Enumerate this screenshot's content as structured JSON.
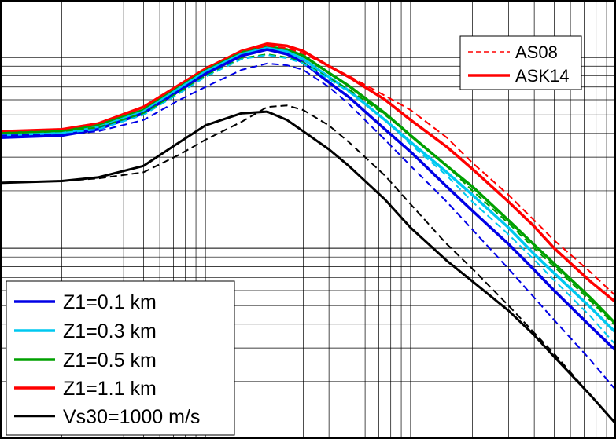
{
  "chart_data": {
    "type": "line",
    "title": "",
    "xlabel": "",
    "ylabel": "",
    "x_scale": "log",
    "y_scale": "log",
    "xlim": [
      0.01,
      10
    ],
    "ylim": [
      0.01,
      2
    ],
    "grid": true,
    "colors": {
      "z1_0_1": "#0000e6",
      "z1_0_3": "#00c8f0",
      "z1_0_5": "#00a000",
      "z1_1_1": "#ff0000",
      "vs30_1000": "#000000"
    },
    "legend_model": {
      "placement": "top-right",
      "entries": [
        {
          "label": "AS08",
          "style": "dashed",
          "color": "#ff0000"
        },
        {
          "label": "ASK14",
          "style": "solid",
          "color": "#ff0000"
        }
      ]
    },
    "legend_site": {
      "placement": "bottom-left",
      "entries": [
        {
          "label": "Z1=0.1 km",
          "color": "#0000e6"
        },
        {
          "label": "Z1=0.3 km",
          "color": "#00c8f0"
        },
        {
          "label": "Z1=0.5 km",
          "color": "#00a000"
        },
        {
          "label": "Z1=1.1 km",
          "color": "#ff0000"
        },
        {
          "label": "Vs30=1000 m/s",
          "color": "#000000"
        }
      ]
    },
    "series": [
      {
        "name": "Z1=1.1 km",
        "model": "ASK14",
        "color": "#ff0000",
        "style": "solid",
        "x": [
          0.01,
          0.02,
          0.03,
          0.05,
          0.075,
          0.1,
          0.15,
          0.2,
          0.25,
          0.3,
          0.4,
          0.5,
          0.75,
          1,
          1.5,
          2,
          3,
          4,
          5,
          7.5,
          10
        ],
        "y": [
          0.41,
          0.42,
          0.45,
          0.55,
          0.72,
          0.87,
          1.08,
          1.18,
          1.15,
          1.08,
          0.9,
          0.79,
          0.6,
          0.47,
          0.34,
          0.26,
          0.175,
          0.13,
          0.1,
          0.067,
          0.052
        ]
      },
      {
        "name": "Z1=0.5 km",
        "model": "ASK14",
        "color": "#00a000",
        "style": "solid",
        "x": [
          0.01,
          0.02,
          0.03,
          0.05,
          0.075,
          0.1,
          0.15,
          0.2,
          0.25,
          0.3,
          0.4,
          0.5,
          0.75,
          1,
          1.5,
          2,
          3,
          4,
          5,
          7.5,
          10
        ],
        "y": [
          0.4,
          0.41,
          0.44,
          0.53,
          0.7,
          0.85,
          1.06,
          1.14,
          1.1,
          1.02,
          0.83,
          0.71,
          0.51,
          0.39,
          0.27,
          0.21,
          0.14,
          0.104,
          0.083,
          0.055,
          0.04
        ]
      },
      {
        "name": "Z1=0.3 km",
        "model": "ASK14",
        "color": "#00c8f0",
        "style": "solid",
        "x": [
          0.01,
          0.02,
          0.03,
          0.05,
          0.075,
          0.1,
          0.15,
          0.2,
          0.25,
          0.3,
          0.4,
          0.5,
          0.75,
          1,
          1.5,
          2,
          3,
          4,
          5,
          7.5,
          10
        ],
        "y": [
          0.39,
          0.4,
          0.43,
          0.52,
          0.69,
          0.84,
          1.04,
          1.12,
          1.07,
          0.98,
          0.79,
          0.67,
          0.47,
          0.36,
          0.25,
          0.19,
          0.128,
          0.093,
          0.074,
          0.049,
          0.036
        ]
      },
      {
        "name": "Z1=0.1 km",
        "model": "ASK14",
        "color": "#0000e6",
        "style": "solid",
        "x": [
          0.01,
          0.02,
          0.03,
          0.05,
          0.075,
          0.1,
          0.15,
          0.2,
          0.25,
          0.3,
          0.4,
          0.5,
          0.75,
          1,
          1.5,
          2,
          3,
          4,
          5,
          7.5,
          10
        ],
        "y": [
          0.38,
          0.39,
          0.42,
          0.51,
          0.67,
          0.82,
          1.02,
          1.1,
          1.04,
          0.94,
          0.74,
          0.62,
          0.42,
          0.32,
          0.21,
          0.157,
          0.105,
          0.077,
          0.06,
          0.039,
          0.029
        ]
      },
      {
        "name": "Vs30=1000 m/s",
        "model": "ASK14",
        "color": "#000000",
        "style": "solid",
        "x": [
          0.01,
          0.02,
          0.03,
          0.05,
          0.075,
          0.1,
          0.15,
          0.2,
          0.25,
          0.3,
          0.4,
          0.5,
          0.75,
          1,
          1.5,
          2,
          3,
          4,
          5,
          7.5,
          10
        ],
        "y": [
          0.22,
          0.225,
          0.235,
          0.27,
          0.36,
          0.44,
          0.51,
          0.52,
          0.47,
          0.41,
          0.33,
          0.27,
          0.18,
          0.128,
          0.086,
          0.067,
          0.047,
          0.035,
          0.027,
          0.017,
          0.012
        ]
      },
      {
        "name": "Z1=1.1 km",
        "model": "AS08",
        "color": "#ff0000",
        "style": "dashed",
        "x": [
          0.01,
          0.02,
          0.03,
          0.05,
          0.075,
          0.1,
          0.15,
          0.2,
          0.25,
          0.3,
          0.4,
          0.5,
          0.75,
          1,
          1.5,
          2,
          3,
          4,
          5,
          7.5,
          10
        ],
        "y": [
          0.41,
          0.42,
          0.45,
          0.55,
          0.72,
          0.88,
          1.08,
          1.15,
          1.12,
          1.05,
          0.9,
          0.8,
          0.63,
          0.53,
          0.38,
          0.28,
          0.19,
          0.14,
          0.11,
          0.075,
          0.056
        ]
      },
      {
        "name": "Z1=0.5 km",
        "model": "AS08",
        "color": "#00a000",
        "style": "dashed",
        "x": [
          0.01,
          0.02,
          0.03,
          0.05,
          0.075,
          0.1,
          0.15,
          0.2,
          0.25,
          0.3,
          0.4,
          0.5,
          0.75,
          1,
          1.5,
          2,
          3,
          4,
          5,
          7.5,
          10
        ],
        "y": [
          0.4,
          0.41,
          0.43,
          0.51,
          0.66,
          0.8,
          0.99,
          1.04,
          1.0,
          0.94,
          0.78,
          0.68,
          0.5,
          0.39,
          0.27,
          0.2,
          0.135,
          0.1,
          0.08,
          0.053,
          0.039
        ]
      },
      {
        "name": "Z1=0.3 km",
        "model": "AS08",
        "color": "#00c8f0",
        "style": "dashed",
        "x": [
          0.01,
          0.02,
          0.03,
          0.05,
          0.075,
          0.1,
          0.15,
          0.2,
          0.25,
          0.3,
          0.4,
          0.5,
          0.75,
          1,
          1.5,
          2,
          3,
          4,
          5,
          7.5,
          10
        ],
        "y": [
          0.39,
          0.4,
          0.42,
          0.5,
          0.65,
          0.79,
          0.98,
          1.03,
          0.99,
          0.93,
          0.77,
          0.66,
          0.47,
          0.35,
          0.24,
          0.175,
          0.118,
          0.087,
          0.068,
          0.044,
          0.031
        ]
      },
      {
        "name": "Z1=0.1 km",
        "model": "AS08",
        "color": "#0000e6",
        "style": "dashed",
        "x": [
          0.01,
          0.02,
          0.03,
          0.05,
          0.075,
          0.1,
          0.15,
          0.2,
          0.25,
          0.3,
          0.4,
          0.5,
          0.75,
          1,
          1.5,
          2,
          3,
          4,
          5,
          7.5,
          10
        ],
        "y": [
          0.39,
          0.395,
          0.41,
          0.47,
          0.6,
          0.7,
          0.86,
          0.93,
          0.91,
          0.86,
          0.7,
          0.57,
          0.37,
          0.27,
          0.175,
          0.125,
          0.078,
          0.055,
          0.042,
          0.026,
          0.018
        ]
      },
      {
        "name": "Vs30=1000 m/s",
        "model": "AS08",
        "color": "#000000",
        "style": "dashed",
        "x": [
          0.01,
          0.02,
          0.03,
          0.05,
          0.075,
          0.1,
          0.15,
          0.2,
          0.25,
          0.3,
          0.4,
          0.5,
          0.75,
          1,
          1.5,
          2,
          3,
          4,
          5,
          7.5,
          10
        ],
        "y": [
          0.22,
          0.225,
          0.232,
          0.25,
          0.31,
          0.37,
          0.46,
          0.55,
          0.56,
          0.53,
          0.44,
          0.36,
          0.24,
          0.17,
          0.105,
          0.078,
          0.05,
          0.036,
          0.028,
          0.017,
          0.012
        ]
      }
    ]
  }
}
